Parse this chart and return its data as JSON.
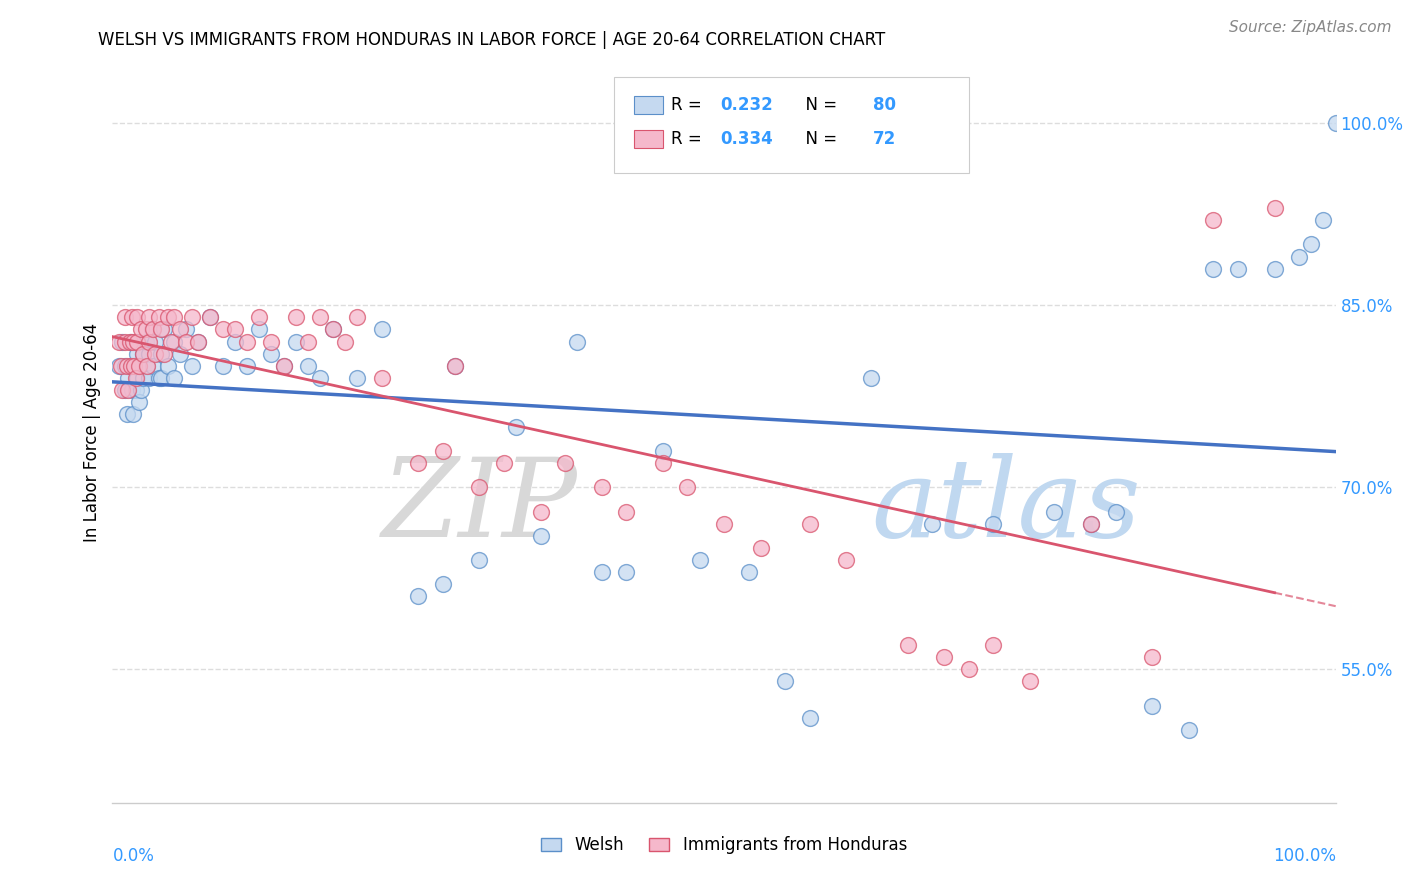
{
  "title": "WELSH VS IMMIGRANTS FROM HONDURAS IN LABOR FORCE | AGE 20-64 CORRELATION CHART",
  "source": "Source: ZipAtlas.com",
  "ylabel": "In Labor Force | Age 20-64",
  "ytick_labels": [
    "55.0%",
    "70.0%",
    "85.0%",
    "100.0%"
  ],
  "ytick_values": [
    0.55,
    0.7,
    0.85,
    1.0
  ],
  "xlim": [
    0.0,
    1.0
  ],
  "ylim": [
    0.44,
    1.05
  ],
  "welsh_fill_color": "#c5d9f0",
  "welsh_edge_color": "#5b8fc9",
  "honduras_fill_color": "#f5b8cb",
  "honduras_edge_color": "#d9556e",
  "welsh_line_color": "#4472c4",
  "honduras_line_color": "#d9556e",
  "legend_text_color": "#333333",
  "R_N_color": "#3399ff",
  "title_fontsize": 12,
  "source_fontsize": 11,
  "welsh_x": [
    0.005,
    0.008,
    0.01,
    0.01,
    0.012,
    0.013,
    0.015,
    0.015,
    0.016,
    0.017,
    0.018,
    0.019,
    0.02,
    0.02,
    0.021,
    0.022,
    0.022,
    0.023,
    0.025,
    0.025,
    0.027,
    0.028,
    0.03,
    0.03,
    0.032,
    0.033,
    0.035,
    0.038,
    0.04,
    0.04,
    0.042,
    0.045,
    0.05,
    0.05,
    0.055,
    0.06,
    0.065,
    0.07,
    0.08,
    0.09,
    0.1,
    0.11,
    0.12,
    0.13,
    0.14,
    0.15,
    0.16,
    0.17,
    0.18,
    0.2,
    0.22,
    0.25,
    0.27,
    0.28,
    0.3,
    0.33,
    0.35,
    0.38,
    0.4,
    0.42,
    0.45,
    0.48,
    0.52,
    0.55,
    0.57,
    0.62,
    0.67,
    0.72,
    0.77,
    0.8,
    0.82,
    0.85,
    0.88,
    0.9,
    0.92,
    0.95,
    0.97,
    0.98,
    0.99,
    1.0
  ],
  "welsh_y": [
    0.8,
    0.82,
    0.78,
    0.8,
    0.76,
    0.79,
    0.82,
    0.8,
    0.78,
    0.76,
    0.8,
    0.78,
    0.81,
    0.79,
    0.82,
    0.8,
    0.77,
    0.78,
    0.81,
    0.79,
    0.82,
    0.8,
    0.81,
    0.79,
    0.83,
    0.8,
    0.82,
    0.79,
    0.81,
    0.79,
    0.83,
    0.8,
    0.82,
    0.79,
    0.81,
    0.83,
    0.8,
    0.82,
    0.84,
    0.8,
    0.82,
    0.8,
    0.83,
    0.81,
    0.8,
    0.82,
    0.8,
    0.79,
    0.83,
    0.79,
    0.83,
    0.61,
    0.62,
    0.8,
    0.64,
    0.75,
    0.66,
    0.82,
    0.63,
    0.63,
    0.73,
    0.64,
    0.63,
    0.54,
    0.51,
    0.79,
    0.67,
    0.67,
    0.68,
    0.67,
    0.68,
    0.52,
    0.5,
    0.88,
    0.88,
    0.88,
    0.89,
    0.9,
    0.92,
    1.0
  ],
  "honduras_x": [
    0.005,
    0.007,
    0.008,
    0.01,
    0.01,
    0.012,
    0.013,
    0.014,
    0.015,
    0.016,
    0.017,
    0.018,
    0.019,
    0.02,
    0.02,
    0.022,
    0.023,
    0.025,
    0.027,
    0.028,
    0.03,
    0.03,
    0.033,
    0.035,
    0.038,
    0.04,
    0.042,
    0.045,
    0.048,
    0.05,
    0.055,
    0.06,
    0.065,
    0.07,
    0.08,
    0.09,
    0.1,
    0.11,
    0.12,
    0.13,
    0.14,
    0.15,
    0.16,
    0.17,
    0.18,
    0.19,
    0.2,
    0.22,
    0.25,
    0.27,
    0.28,
    0.3,
    0.32,
    0.35,
    0.37,
    0.4,
    0.42,
    0.45,
    0.47,
    0.5,
    0.53,
    0.57,
    0.6,
    0.65,
    0.68,
    0.7,
    0.72,
    0.75,
    0.8,
    0.85,
    0.9,
    0.95
  ],
  "honduras_y": [
    0.82,
    0.8,
    0.78,
    0.84,
    0.82,
    0.8,
    0.78,
    0.82,
    0.8,
    0.84,
    0.82,
    0.8,
    0.79,
    0.84,
    0.82,
    0.8,
    0.83,
    0.81,
    0.83,
    0.8,
    0.84,
    0.82,
    0.83,
    0.81,
    0.84,
    0.83,
    0.81,
    0.84,
    0.82,
    0.84,
    0.83,
    0.82,
    0.84,
    0.82,
    0.84,
    0.83,
    0.83,
    0.82,
    0.84,
    0.82,
    0.8,
    0.84,
    0.82,
    0.84,
    0.83,
    0.82,
    0.84,
    0.79,
    0.72,
    0.73,
    0.8,
    0.7,
    0.72,
    0.68,
    0.72,
    0.7,
    0.68,
    0.72,
    0.7,
    0.67,
    0.65,
    0.67,
    0.64,
    0.57,
    0.56,
    0.55,
    0.57,
    0.54,
    0.67,
    0.56,
    0.92,
    0.93
  ],
  "watermark_ZIP_color": "#d8d8d8",
  "watermark_atlas_color": "#c0d8f0",
  "grid_color": "#dddddd",
  "spine_color": "#cccccc"
}
